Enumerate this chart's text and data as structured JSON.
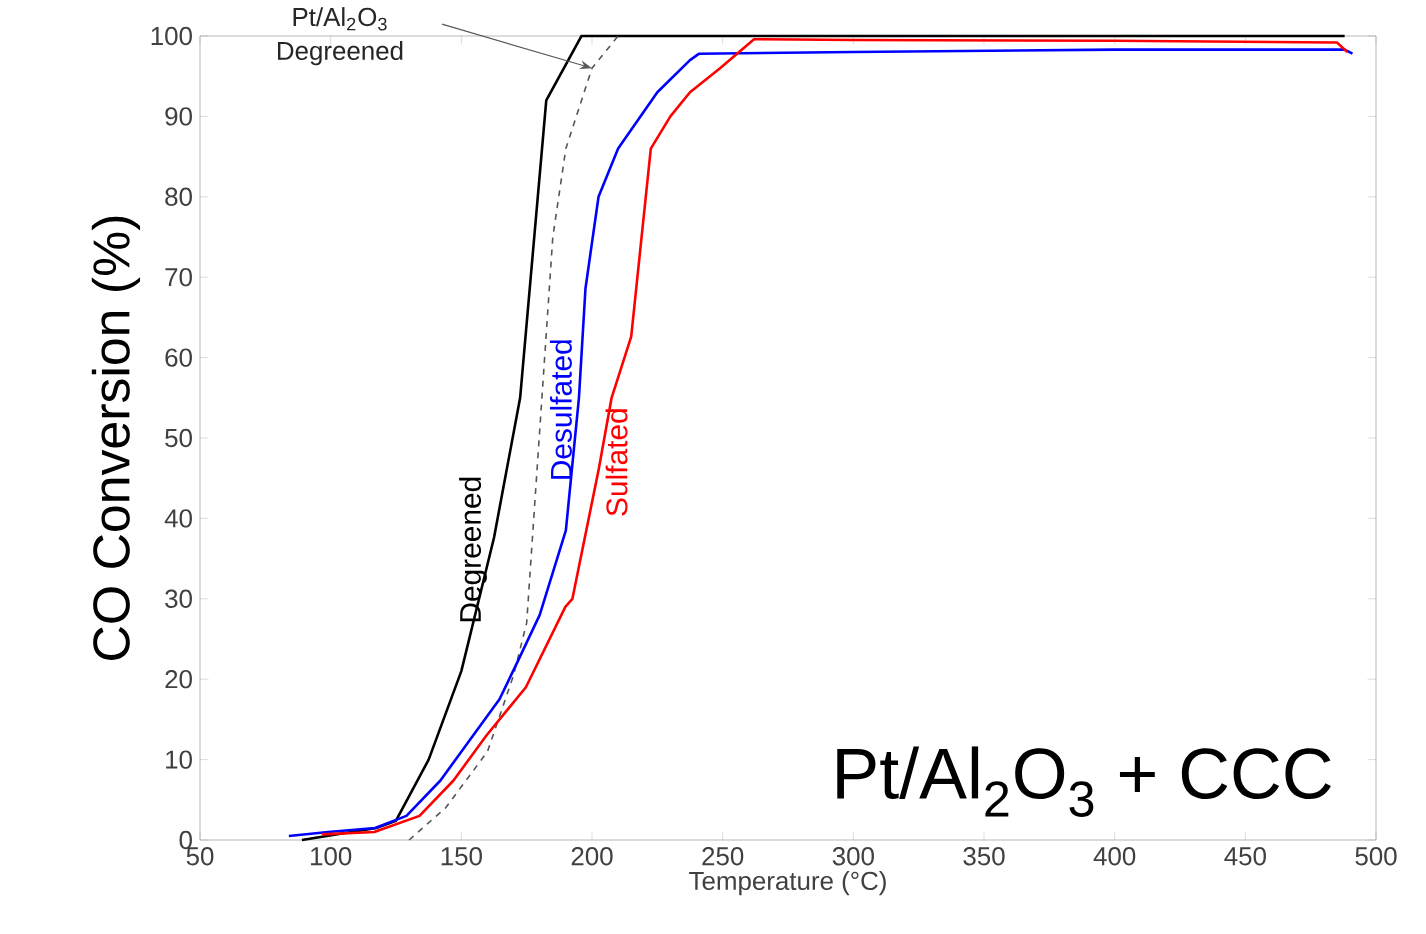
{
  "chart_data": {
    "type": "line",
    "xlabel": "Temperature (°C)",
    "ylabel": "CO Conversion (%)",
    "xlim": [
      50,
      500
    ],
    "xticks": [
      50,
      100,
      150,
      200,
      250,
      300,
      350,
      400,
      450,
      500
    ],
    "ylim": [
      0,
      100
    ],
    "yticks": [
      0,
      10,
      20,
      30,
      40,
      50,
      60,
      70,
      80,
      90,
      100
    ],
    "grid": false,
    "marker": "none",
    "annotations": [
      "Pt/Al$_{2}$O$_{3}$ + CCC",
      "Pt/Al$_{2}$O$_{3}$ Degreened"
    ],
    "series": [
      {
        "name": "Degreened",
        "color": "#000000",
        "line_style": "solid",
        "x": [
          89,
          117.5,
          125,
          137.5,
          150,
          162.5,
          172.5,
          182.5,
          196,
          250,
          350,
          488
        ],
        "values": [
          0,
          1.5,
          2.4,
          10,
          21,
          37.6,
          55,
          92,
          100,
          100,
          100,
          100
        ]
      },
      {
        "color": "#555555",
        "line_style": "dashed",
        "x": [
          130,
          144,
          160,
          170,
          175,
          180,
          185,
          190,
          200,
          210
        ],
        "values": [
          0,
          4,
          11,
          20.5,
          27,
          51,
          75,
          86,
          96,
          100
        ]
      },
      {
        "name": "Desulfated",
        "color": "#0000ff",
        "line_style": "solid",
        "x": [
          84,
          99,
          117,
          129,
          142,
          154.5,
          164.6,
          172,
          180,
          190,
          195,
          197.5,
          202.5,
          210,
          225,
          237.5,
          241,
          300,
          400,
          488,
          491
        ],
        "values": [
          0.5,
          1,
          1.5,
          3,
          7.4,
          13,
          17.5,
          22.5,
          28,
          38.5,
          55,
          68.6,
          80,
          86,
          93,
          97,
          97.8,
          98,
          98.3,
          98.3,
          97.8
        ]
      },
      {
        "name": "Sulfated",
        "color": "#ff0000",
        "line_style": "solid",
        "x": [
          96.6,
          116.7,
          134,
          147,
          159.6,
          174.7,
          189.8,
          192.5,
          202.5,
          207.5,
          215,
          222.5,
          230,
          237.5,
          249,
          262,
          300,
          400,
          485,
          489
        ],
        "values": [
          0.7,
          1,
          3,
          7.4,
          13,
          19,
          29,
          30,
          46,
          55,
          62.6,
          86,
          90,
          93,
          96,
          99.6,
          99.5,
          99.4,
          99.2,
          98
        ]
      }
    ]
  }
}
